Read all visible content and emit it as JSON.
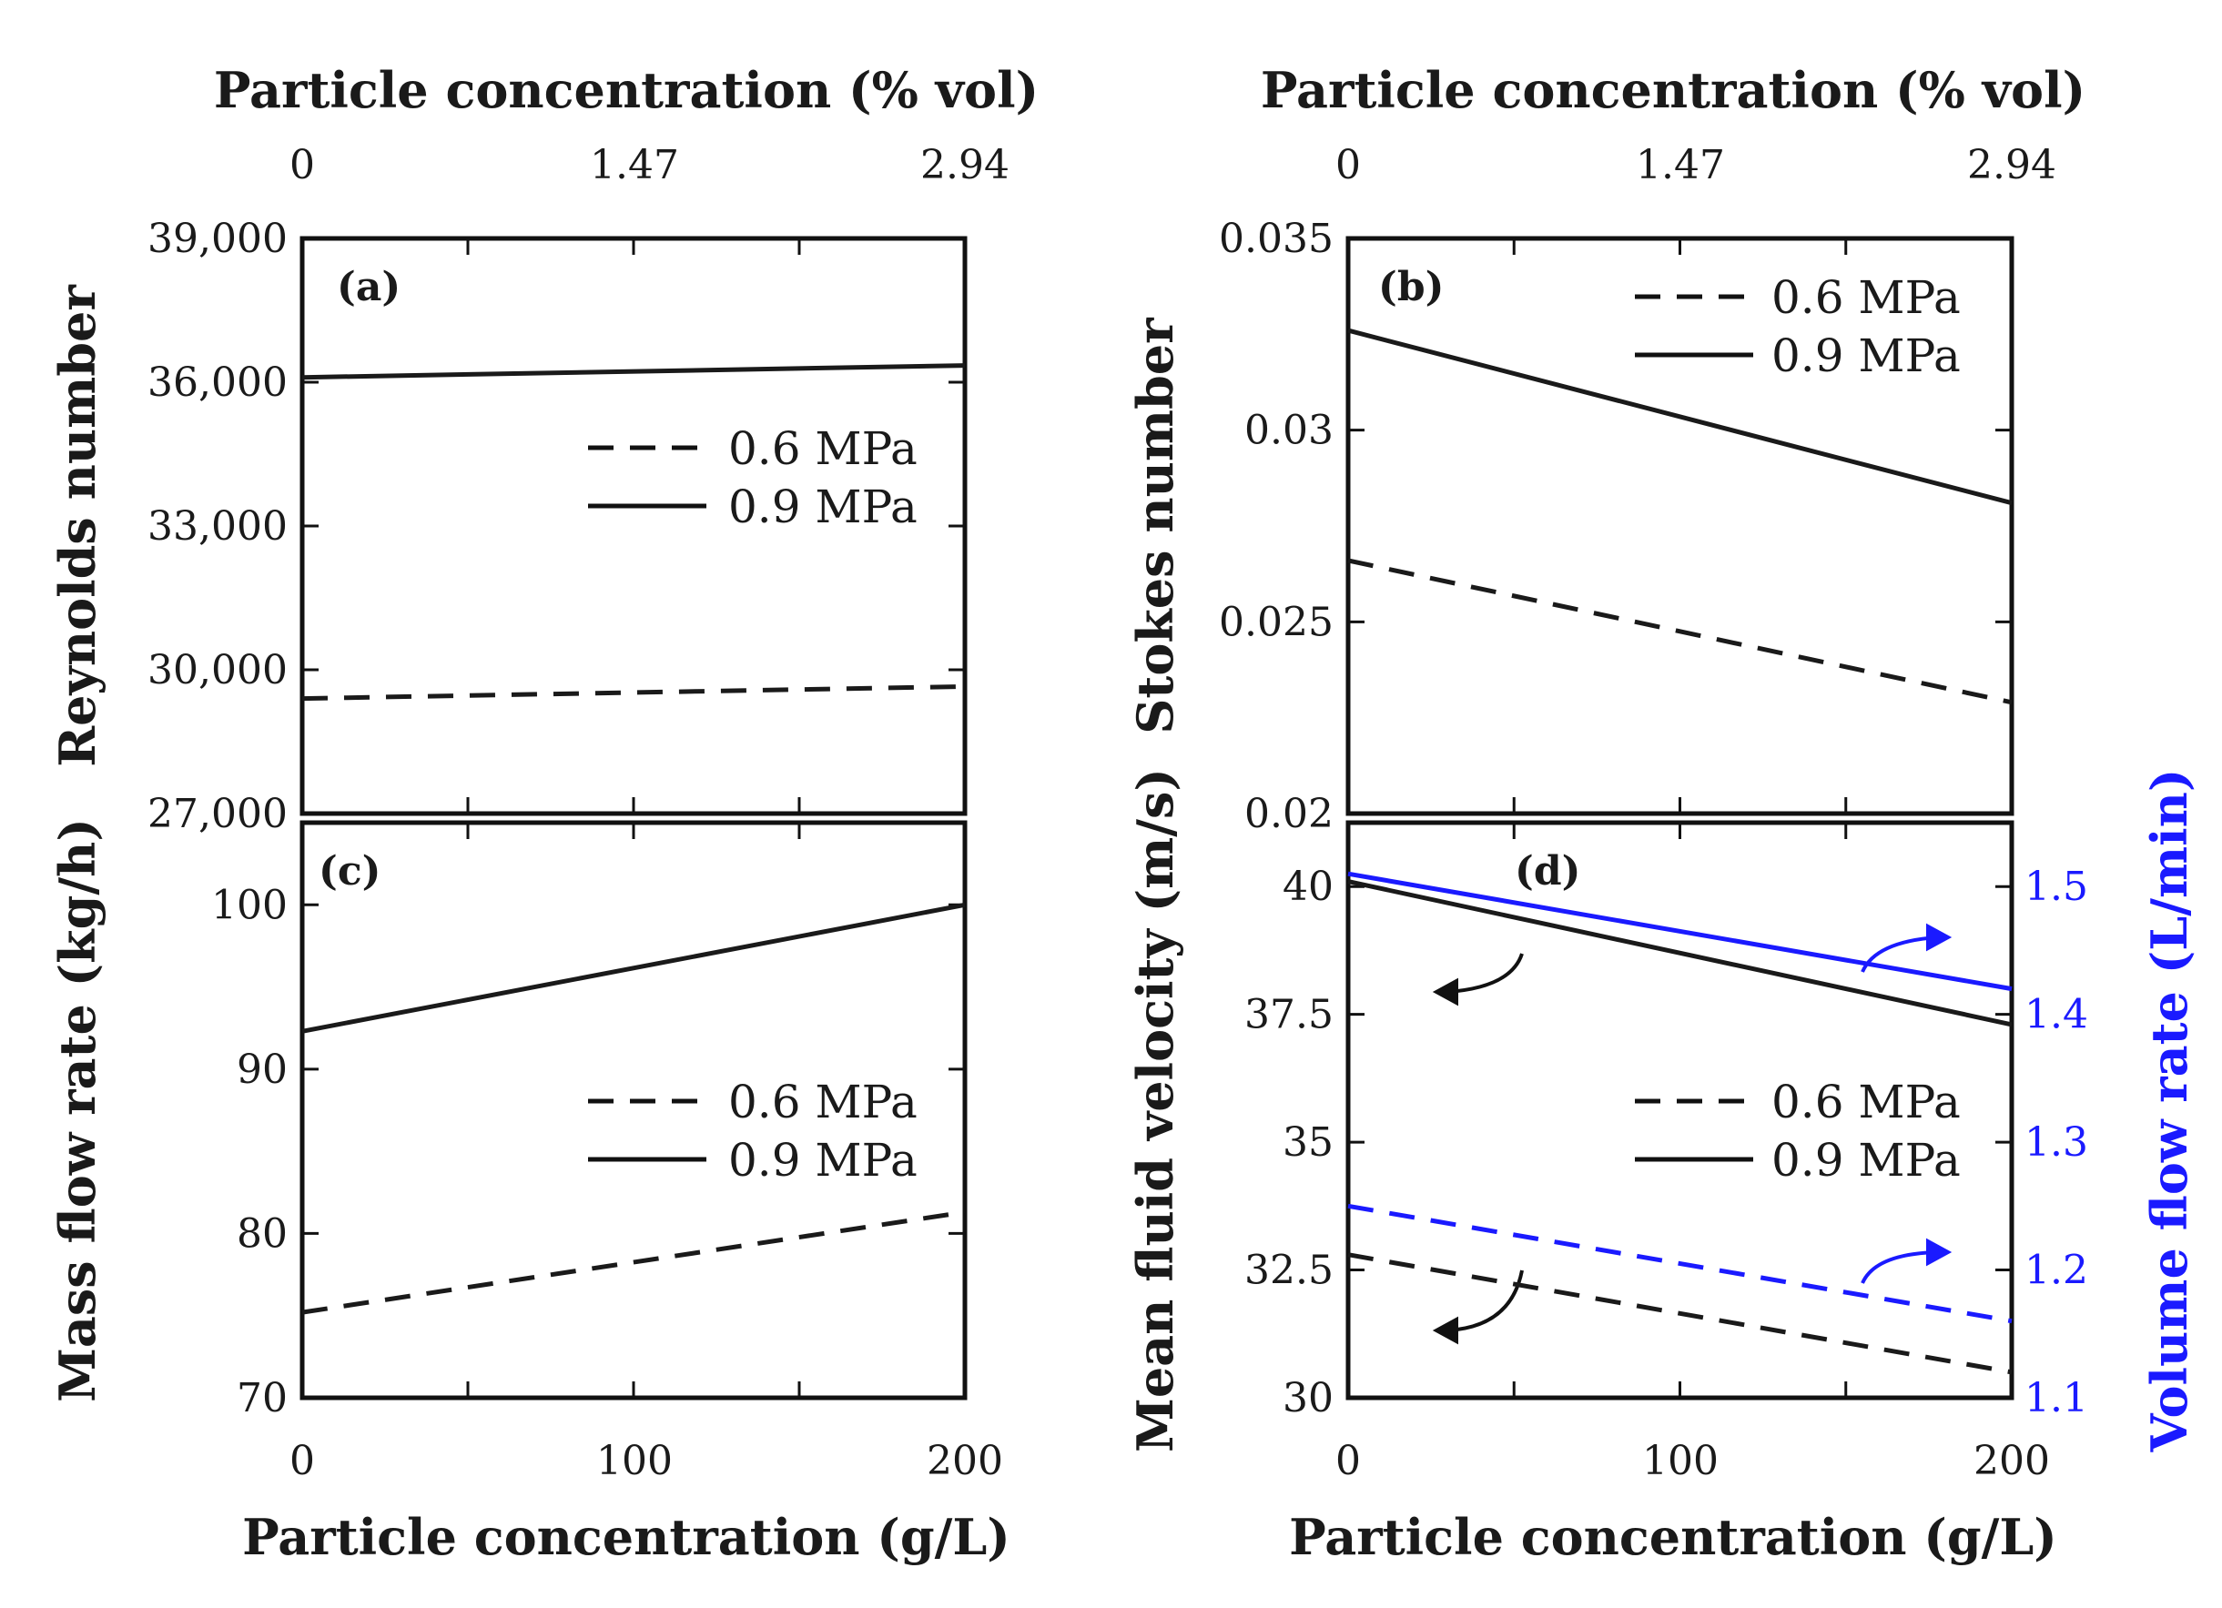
{
  "figure": {
    "top_axis_title": "Particle concentration (% vol)",
    "bottom_axis_title": "Particle concentration (g/L)",
    "top_ticks": [
      "0",
      "1.47",
      "2.94"
    ],
    "bottom_ticks": [
      "0",
      "100",
      "200"
    ],
    "legend": [
      {
        "label": "0.6 MPa",
        "style": "dashed"
      },
      {
        "label": "0.9 MPa",
        "style": "solid"
      }
    ]
  },
  "colors": {
    "black": "#1a1a1a",
    "blue": "#1a1aff"
  },
  "chart_data": [
    {
      "id": "a",
      "tag": "(a)",
      "type": "line",
      "title": "",
      "xlabel": "Particle concentration (% vol)",
      "xlim": [
        0,
        200
      ],
      "ylabel": "Reynolds number",
      "ylim": [
        27000,
        39000
      ],
      "yticks": [
        27000,
        30000,
        33000,
        36000,
        39000
      ],
      "ytick_labels": [
        "27,000",
        "30,000",
        "33,000",
        "36,000",
        "39,000"
      ],
      "legend_position": "center-right",
      "series": [
        {
          "name": "0.6 MPa",
          "style": "dashed",
          "color": "#1a1a1a",
          "x": [
            0,
            200
          ],
          "y": [
            29400,
            29650
          ]
        },
        {
          "name": "0.9 MPa",
          "style": "solid",
          "color": "#1a1a1a",
          "x": [
            0,
            200
          ],
          "y": [
            36100,
            36350
          ]
        }
      ]
    },
    {
      "id": "b",
      "tag": "(b)",
      "type": "line",
      "title": "",
      "xlabel": "Particle concentration (% vol)",
      "xlim": [
        0,
        200
      ],
      "ylabel": "Stokes number",
      "ylim": [
        0.02,
        0.035
      ],
      "yticks": [
        0.02,
        0.025,
        0.03,
        0.035
      ],
      "ytick_labels": [
        "0.02",
        "0.025",
        "0.03",
        "0.035"
      ],
      "legend_position": "top-right",
      "series": [
        {
          "name": "0.6 MPa",
          "style": "dashed",
          "color": "#1a1a1a",
          "x": [
            0,
            200
          ],
          "y": [
            0.0266,
            0.0229
          ]
        },
        {
          "name": "0.9 MPa",
          "style": "solid",
          "color": "#1a1a1a",
          "x": [
            0,
            200
          ],
          "y": [
            0.0326,
            0.0281
          ]
        }
      ]
    },
    {
      "id": "c",
      "tag": "(c)",
      "type": "line",
      "title": "",
      "xlabel": "Particle concentration (g/L)",
      "xlim": [
        0,
        200
      ],
      "ylabel": "Mass flow rate (kg/h)",
      "ylim": [
        70,
        105
      ],
      "yticks": [
        70,
        80,
        90,
        100
      ],
      "ytick_labels": [
        "70",
        "80",
        "90",
        "100"
      ],
      "legend_position": "center-right",
      "series": [
        {
          "name": "0.6 MPa",
          "style": "dashed",
          "color": "#1a1a1a",
          "x": [
            0,
            200
          ],
          "y": [
            75.2,
            81.3
          ]
        },
        {
          "name": "0.9 MPa",
          "style": "solid",
          "color": "#1a1a1a",
          "x": [
            0,
            200
          ],
          "y": [
            92.3,
            100.0
          ]
        }
      ]
    },
    {
      "id": "d",
      "tag": "(d)",
      "type": "line",
      "title": "",
      "xlabel": "Particle concentration (g/L)",
      "xlim": [
        0,
        200
      ],
      "ylabel": "Mean fluid velocity (m/s)",
      "ylim": [
        30,
        41.25
      ],
      "yticks": [
        30,
        32.5,
        35,
        37.5,
        40
      ],
      "ytick_labels": [
        "30",
        "32.5",
        "35",
        "37.5",
        "40"
      ],
      "y2label": "Volume flow rate (L/min)",
      "y2lim": [
        1.1,
        1.55
      ],
      "y2ticks": [
        1.1,
        1.2,
        1.3,
        1.4,
        1.5
      ],
      "y2tick_labels": [
        "1.1",
        "1.2",
        "1.3",
        "1.4",
        "1.5"
      ],
      "legend_position": "center-right",
      "series": [
        {
          "name": "0.6 MPa",
          "style": "dashed",
          "color": "#1a1a1a",
          "axis": "left",
          "x": [
            0,
            200
          ],
          "y": [
            32.8,
            30.5
          ]
        },
        {
          "name": "0.9 MPa",
          "style": "solid",
          "color": "#1a1a1a",
          "axis": "left",
          "x": [
            0,
            200
          ],
          "y": [
            40.1,
            37.3
          ]
        },
        {
          "name": "0.6 MPa volume flow",
          "style": "dashed",
          "color": "#1a1aff",
          "axis": "right",
          "x": [
            0,
            200
          ],
          "y": [
            1.25,
            1.16
          ]
        },
        {
          "name": "0.9 MPa volume flow",
          "style": "solid",
          "color": "#1a1aff",
          "axis": "right",
          "x": [
            0,
            200
          ],
          "y": [
            1.51,
            1.42
          ]
        }
      ]
    }
  ]
}
